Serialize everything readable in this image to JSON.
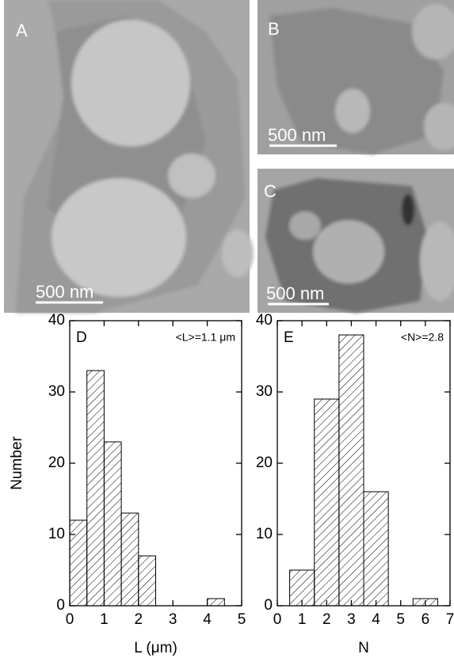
{
  "images": [
    {
      "label": "A",
      "scale_bar": "500 nm"
    },
    {
      "label": "B",
      "scale_bar": "500 nm"
    },
    {
      "label": "C",
      "scale_bar": "500 nm"
    }
  ],
  "chart_data": [
    {
      "type": "histogram",
      "panel": "D",
      "annotation": "<L>=1.1 μm",
      "x_label": "L (μm)",
      "y_label": "Number",
      "bins": [
        0,
        0.5,
        1,
        1.5,
        2,
        2.5,
        3,
        3.5,
        4,
        4.5
      ],
      "counts": [
        12,
        33,
        23,
        13,
        7,
        0,
        0,
        0,
        1
      ],
      "xlim": [
        0,
        5
      ],
      "xticks": [
        0,
        1,
        2,
        3,
        4,
        5
      ],
      "ylim": [
        0,
        40
      ],
      "yticks": [
        0,
        10,
        20,
        30,
        40
      ],
      "color": "#000000"
    },
    {
      "type": "histogram",
      "panel": "E",
      "annotation": "<N>=2.8",
      "x_label": "N",
      "bins": [
        0.5,
        1.5,
        2.5,
        3.5,
        4.5,
        5.5,
        6.5
      ],
      "counts": [
        5,
        29,
        38,
        16,
        0,
        1
      ],
      "xlim": [
        0,
        7
      ],
      "xticks": [
        0,
        1,
        2,
        3,
        4,
        5,
        6,
        7
      ],
      "ylim": [
        0,
        40
      ],
      "yticks": [
        0,
        10,
        20,
        30,
        40
      ],
      "color": "#000000"
    }
  ]
}
